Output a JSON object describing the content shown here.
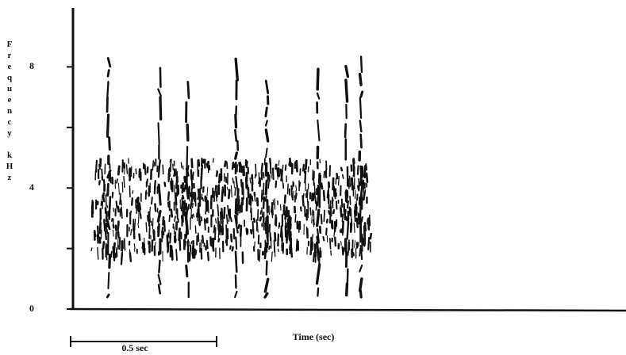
{
  "chart_data": {
    "type": "spectrogram",
    "ylabel": "Frequency kHz",
    "xlabel": "Time (sec)",
    "scale_bar_label": "0.5 sec",
    "ylim": [
      0,
      10
    ],
    "yticks": [
      0,
      4,
      8
    ],
    "minor_yticks": [
      2,
      6
    ],
    "color": "#111111"
  }
}
